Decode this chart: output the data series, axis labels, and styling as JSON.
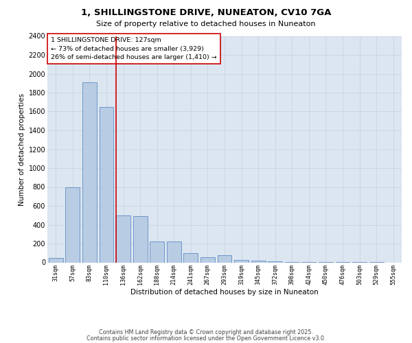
{
  "title_line1": "1, SHILLINGSTONE DRIVE, NUNEATON, CV10 7GA",
  "title_line2": "Size of property relative to detached houses in Nuneaton",
  "xlabel": "Distribution of detached houses by size in Nuneaton",
  "ylabel": "Number of detached properties",
  "bins": [
    "31sqm",
    "57sqm",
    "83sqm",
    "110sqm",
    "136sqm",
    "162sqm",
    "188sqm",
    "214sqm",
    "241sqm",
    "267sqm",
    "293sqm",
    "319sqm",
    "345sqm",
    "372sqm",
    "398sqm",
    "424sqm",
    "450sqm",
    "476sqm",
    "503sqm",
    "529sqm",
    "555sqm"
  ],
  "values": [
    50,
    800,
    1910,
    1650,
    500,
    490,
    225,
    225,
    100,
    55,
    75,
    25,
    15,
    8,
    5,
    3,
    2,
    1,
    1,
    1,
    0
  ],
  "bar_color": "#b8cce4",
  "bar_edge_color": "#4a7ebb",
  "grid_color": "#c8d4e3",
  "background_color": "#dce6f1",
  "vline_color": "#cc0000",
  "vline_pos": 3.57,
  "annotation_text": "1 SHILLINGSTONE DRIVE: 127sqm\n← 73% of detached houses are smaller (3,929)\n26% of semi-detached houses are larger (1,410) →",
  "annotation_box_color": "#ffffff",
  "annotation_box_edge": "#cc0000",
  "ylim": [
    0,
    2400
  ],
  "yticks": [
    0,
    200,
    400,
    600,
    800,
    1000,
    1200,
    1400,
    1600,
    1800,
    2000,
    2200,
    2400
  ],
  "footer_line1": "Contains HM Land Registry data © Crown copyright and database right 2025.",
  "footer_line2": "Contains public sector information licensed under the Open Government Licence v3.0."
}
